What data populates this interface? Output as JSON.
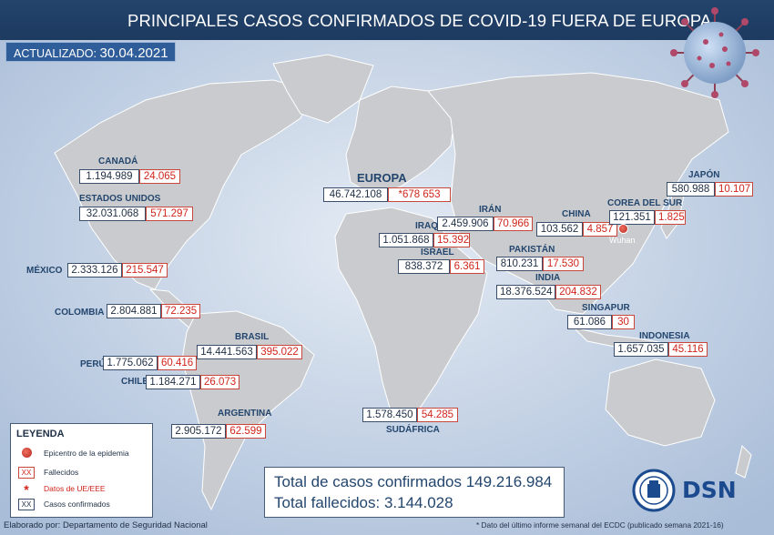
{
  "title": "PRINCIPALES CASOS CONFIRMADOS DE COVID-19 FUERA DE EUROPA",
  "updated": {
    "label": "ACTUALIZADO:",
    "date": "30.04.2021"
  },
  "regions": [
    {
      "id": "canada",
      "name": "CANADÁ",
      "confirmed": "1.194.989",
      "deaths": "24.065"
    },
    {
      "id": "usa",
      "name": "ESTADOS UNIDOS",
      "confirmed": "32.031.068",
      "deaths": "571.297"
    },
    {
      "id": "mexico",
      "name": "MÉXICO",
      "confirmed": "2.333.126",
      "deaths": "215.547"
    },
    {
      "id": "colombia",
      "name": "COLOMBIA",
      "confirmed": "2.804.881",
      "deaths": "72.235"
    },
    {
      "id": "brasil",
      "name": "BRASIL",
      "confirmed": "14.441.563",
      "deaths": "395.022"
    },
    {
      "id": "peru",
      "name": "PERÚ",
      "confirmed": "1.775.062",
      "deaths": "60.416"
    },
    {
      "id": "chile",
      "name": "CHILE",
      "confirmed": "1.184.271",
      "deaths": "26.073"
    },
    {
      "id": "argentina",
      "name": "ARGENTINA",
      "confirmed": "2.905.172",
      "deaths": "62.599"
    },
    {
      "id": "europa",
      "name": "EUROPA",
      "confirmed": "46.742.108",
      "deaths": "*678 653"
    },
    {
      "id": "iran",
      "name": "IRÁN",
      "confirmed": "2.459.906",
      "deaths": "70.966"
    },
    {
      "id": "iraq",
      "name": "IRAQ",
      "confirmed": "1.051.868",
      "deaths": "15.392"
    },
    {
      "id": "israel",
      "name": "ISRAEL",
      "confirmed": "838.372",
      "deaths": "6.361"
    },
    {
      "id": "pakistan",
      "name": "PAKISTÁN",
      "confirmed": "810.231",
      "deaths": "17.530"
    },
    {
      "id": "india",
      "name": "INDIA",
      "confirmed": "18.376.524",
      "deaths": "204.832"
    },
    {
      "id": "china",
      "name": "CHINA",
      "confirmed": "103.562",
      "deaths": "4.857"
    },
    {
      "id": "corea",
      "name": "COREA DEL SUR",
      "confirmed": "121.351",
      "deaths": "1.825"
    },
    {
      "id": "japon",
      "name": "JAPÓN",
      "confirmed": "580.988",
      "deaths": "10.107"
    },
    {
      "id": "singapur",
      "name": "SINGAPUR",
      "confirmed": "61.086",
      "deaths": "30"
    },
    {
      "id": "indonesia",
      "name": "INDONESIA",
      "confirmed": "1.657.035",
      "deaths": "45.116"
    },
    {
      "id": "sudafrica",
      "name": "SUDÁFRICA",
      "confirmed": "1.578.450",
      "deaths": "54.285"
    }
  ],
  "epicenter_city": "Wuhan",
  "legend": {
    "title": "LEYENDA",
    "epicenter": "Epicentro de la epidemia",
    "deaths_symbol": "XX",
    "deaths": "Fallecidos",
    "eu_symbol": "*",
    "eu": "Datos de UE/EEE",
    "confirmed_symbol": "XX",
    "confirmed": "Casos confirmados"
  },
  "totals": {
    "confirmed": "Total de casos confirmados 149.216.984",
    "deaths": "Total fallecidos: 3.144.028"
  },
  "footer": {
    "credit": "Elaborado por: Departamento de Seguridad Nacional",
    "note": "* Dato del último informe semanal del ECDC (publicado semana 2021-16)"
  },
  "logo_text": "DSN",
  "colors": {
    "ocean": "#bccbe0",
    "land": "#c7c9cc",
    "title_bar": "#1d3a60",
    "deaths": "#d0251b",
    "confirmed": "#1f2f45",
    "accent": "#2f5d99"
  }
}
